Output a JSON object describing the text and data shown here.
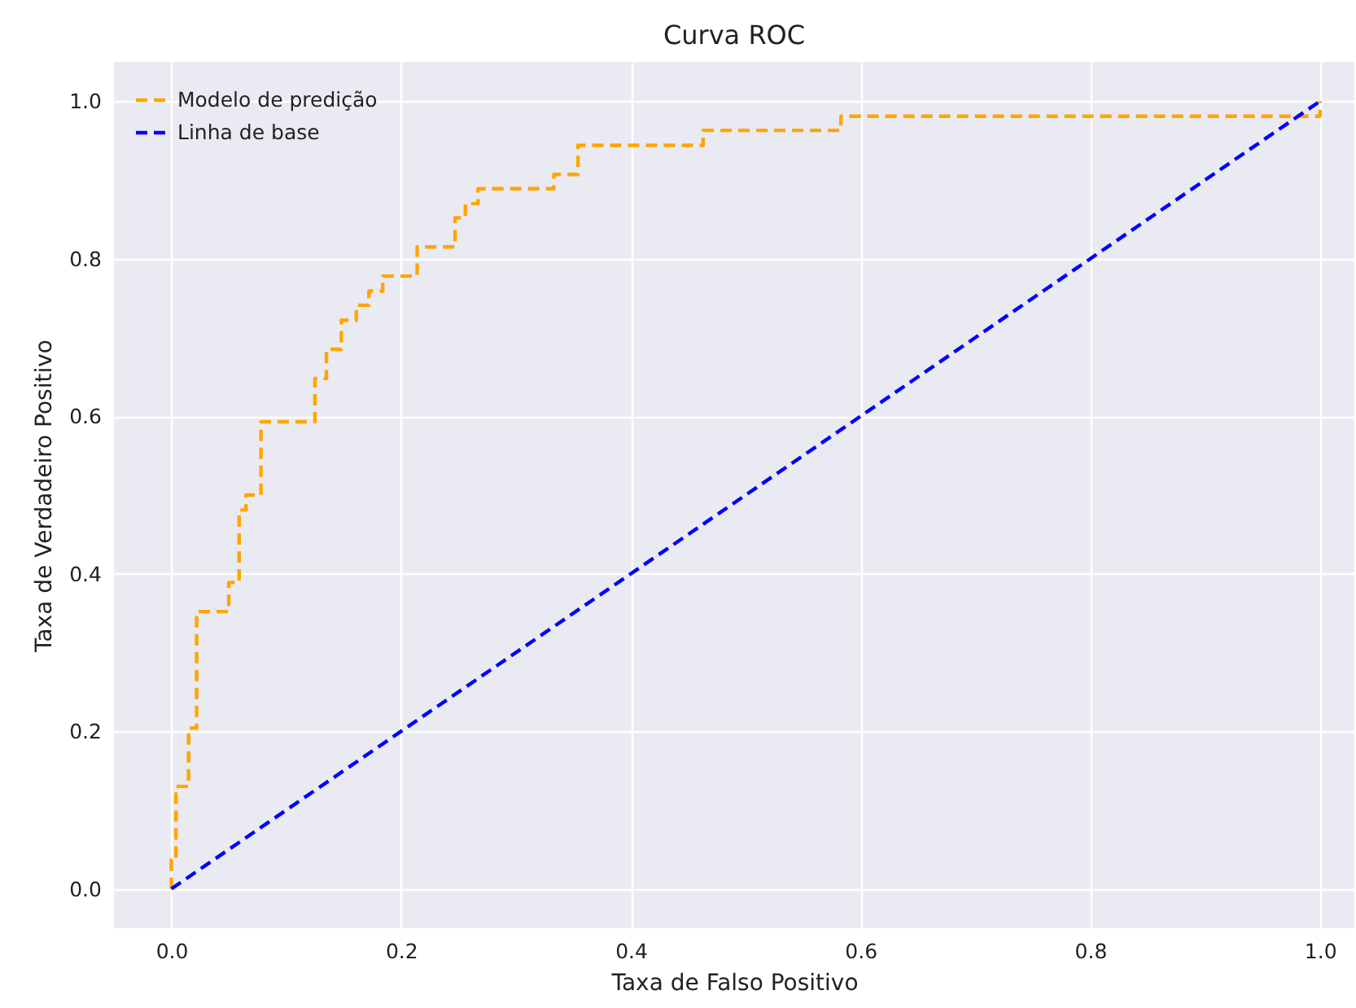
{
  "chart_data": {
    "type": "line",
    "title": "Curva ROC",
    "xlabel": "Taxa de Falso Positivo",
    "ylabel": "Taxa de Verdadeiro Positivo",
    "xlim": [
      -0.05,
      1.03
    ],
    "ylim": [
      -0.05,
      1.05
    ],
    "xticks": [
      {
        "value": 0,
        "label": "0.0"
      },
      0.2,
      0.4,
      0.6,
      0.8,
      {
        "value": 1,
        "label": "1.0"
      }
    ],
    "yticks": [
      {
        "value": 0,
        "label": "0.0"
      },
      0.2,
      0.4,
      0.6,
      0.8,
      {
        "value": 1,
        "label": "1.0"
      }
    ],
    "grid": true,
    "legend": "top left",
    "line_style": "dashed",
    "marker": "none",
    "series": [
      {
        "name": "Modelo de predição",
        "color": "#ffa500",
        "x": [
          0,
          0,
          0.004,
          0.004,
          0.015,
          0.015,
          0.022,
          0.022,
          0.05,
          0.05,
          0.059,
          0.059,
          0.065,
          0.065,
          0.078,
          0.078,
          0.125,
          0.125,
          0.135,
          0.135,
          0.148,
          0.148,
          0.161,
          0.161,
          0.172,
          0.172,
          0.184,
          0.184,
          0.214,
          0.214,
          0.247,
          0.247,
          0.256,
          0.256,
          0.267,
          0.267,
          0.333,
          0.333,
          0.354,
          0.354,
          0.463,
          0.463,
          0.583,
          0.583,
          1.0,
          1.0
        ],
        "values": [
          0,
          0.037,
          0.037,
          0.13,
          0.13,
          0.204,
          0.204,
          0.352,
          0.352,
          0.389,
          0.389,
          0.481,
          0.481,
          0.5,
          0.5,
          0.593,
          0.593,
          0.648,
          0.648,
          0.685,
          0.685,
          0.722,
          0.722,
          0.741,
          0.741,
          0.759,
          0.759,
          0.778,
          0.778,
          0.815,
          0.815,
          0.852,
          0.852,
          0.87,
          0.87,
          0.889,
          0.889,
          0.907,
          0.907,
          0.944,
          0.944,
          0.963,
          0.963,
          0.981,
          0.981,
          1.0
        ]
      },
      {
        "name": "Linha de base",
        "color": "#0000ff",
        "x": [
          0,
          1
        ],
        "values": [
          0,
          1
        ]
      }
    ]
  }
}
